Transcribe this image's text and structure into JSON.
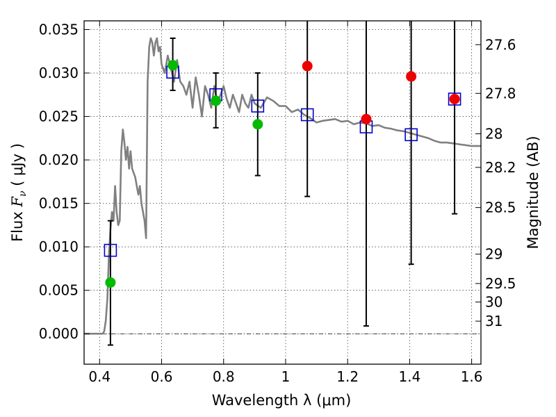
{
  "chart_data": {
    "type": "scatter",
    "xlabel": "Wavelength  λ (μm)",
    "ylabel_prefix": "Flux ",
    "ylabel_symbol": "F",
    "ylabel_subscript": "ν",
    "ylabel_suffix": " ( μJy )",
    "ylabel_right": "Magnitude (AB)",
    "xlim": [
      0.35,
      1.63
    ],
    "ylim": [
      -0.0035,
      0.036
    ],
    "grid": true,
    "x_ticks": [
      0.4,
      0.6,
      0.8,
      1.0,
      1.2,
      1.4,
      1.6
    ],
    "x_tick_labels": [
      "0.4",
      "0.6",
      "0.8",
      "1",
      "1.2",
      "1.4",
      "1.6"
    ],
    "y_ticks": [
      0.0,
      0.005,
      0.01,
      0.015,
      0.02,
      0.025,
      0.03,
      0.035
    ],
    "y_tick_labels": [
      "0.000",
      "0.005",
      "0.010",
      "0.015",
      "0.020",
      "0.025",
      "0.030",
      "0.035"
    ],
    "right_ticks": [
      {
        "label": "27.6",
        "flux": 0.03326
      },
      {
        "label": "27.8",
        "flux": 0.02766
      },
      {
        "label": "28",
        "flux": 0.02301
      },
      {
        "label": "28.2",
        "flux": 0.01914
      },
      {
        "label": "28.5",
        "flux": 0.01452
      },
      {
        "label": "29",
        "flux": 0.00916
      },
      {
        "label": "29.5",
        "flux": 0.00578
      },
      {
        "label": "30",
        "flux": 0.00365
      },
      {
        "label": "31",
        "flux": 0.00145
      }
    ],
    "colors": {
      "model": "#808080",
      "photometry_square": "#0000cc",
      "green_points": "#00bb00",
      "red_points": "#ee0000",
      "error_bars": "#000000",
      "grid": "#444444"
    },
    "series": [
      {
        "kind": "model_spectrum",
        "x": [
          0.35,
          0.41,
          0.415,
          0.42,
          0.425,
          0.43,
          0.435,
          0.44,
          0.445,
          0.45,
          0.455,
          0.46,
          0.465,
          0.47,
          0.475,
          0.48,
          0.485,
          0.49,
          0.495,
          0.5,
          0.505,
          0.51,
          0.515,
          0.52,
          0.525,
          0.53,
          0.535,
          0.54,
          0.545,
          0.55,
          0.555,
          0.56,
          0.565,
          0.57,
          0.575,
          0.58,
          0.585,
          0.59,
          0.595,
          0.6,
          0.61,
          0.62,
          0.63,
          0.64,
          0.65,
          0.66,
          0.67,
          0.68,
          0.69,
          0.7,
          0.71,
          0.72,
          0.73,
          0.74,
          0.75,
          0.76,
          0.77,
          0.78,
          0.79,
          0.8,
          0.81,
          0.82,
          0.83,
          0.84,
          0.85,
          0.86,
          0.87,
          0.88,
          0.89,
          0.9,
          0.92,
          0.94,
          0.96,
          0.98,
          1.0,
          1.02,
          1.04,
          1.06,
          1.08,
          1.1,
          1.12,
          1.14,
          1.16,
          1.18,
          1.2,
          1.22,
          1.24,
          1.26,
          1.28,
          1.3,
          1.32,
          1.34,
          1.36,
          1.38,
          1.4,
          1.42,
          1.44,
          1.46,
          1.48,
          1.5,
          1.52,
          1.54,
          1.56,
          1.58,
          1.6,
          1.63
        ],
        "y": [
          0.0,
          0.0,
          0.0003,
          0.0015,
          0.004,
          0.009,
          0.012,
          0.014,
          0.013,
          0.017,
          0.014,
          0.0125,
          0.013,
          0.021,
          0.0235,
          0.022,
          0.02,
          0.0215,
          0.019,
          0.021,
          0.019,
          0.0185,
          0.018,
          0.017,
          0.016,
          0.017,
          0.015,
          0.014,
          0.013,
          0.011,
          0.029,
          0.033,
          0.034,
          0.0335,
          0.032,
          0.0335,
          0.034,
          0.0325,
          0.033,
          0.031,
          0.03,
          0.032,
          0.0305,
          0.029,
          0.0315,
          0.029,
          0.0285,
          0.0275,
          0.029,
          0.026,
          0.0295,
          0.0275,
          0.025,
          0.0285,
          0.0275,
          0.026,
          0.0285,
          0.0265,
          0.0275,
          0.0285,
          0.027,
          0.026,
          0.0275,
          0.0265,
          0.0255,
          0.0275,
          0.0265,
          0.026,
          0.0275,
          0.0265,
          0.026,
          0.0272,
          0.0268,
          0.0262,
          0.0262,
          0.0255,
          0.0258,
          0.0252,
          0.0248,
          0.0243,
          0.0245,
          0.0246,
          0.0247,
          0.0244,
          0.0245,
          0.0241,
          0.0243,
          0.0242,
          0.0239,
          0.024,
          0.0237,
          0.0236,
          0.0234,
          0.0233,
          0.0231,
          0.0229,
          0.0227,
          0.0225,
          0.0222,
          0.022,
          0.022,
          0.0219,
          0.0218,
          0.0217,
          0.0216,
          0.0216
        ]
      },
      {
        "kind": "photometry_squares",
        "x": [
          0.435,
          0.636,
          0.775,
          0.91,
          1.07,
          1.26,
          1.405,
          1.545
        ],
        "y": [
          0.0096,
          0.0301,
          0.0275,
          0.0262,
          0.0252,
          0.0238,
          0.0229,
          0.027
        ]
      },
      {
        "kind": "green_points",
        "x": [
          0.435,
          0.636,
          0.775,
          0.91
        ],
        "y": [
          0.0059,
          0.0309,
          0.0268,
          0.0241
        ]
      },
      {
        "kind": "red_points",
        "x": [
          1.07,
          1.26,
          1.405,
          1.545
        ],
        "y": [
          0.0308,
          0.0247,
          0.0296,
          0.027
        ]
      },
      {
        "kind": "error_bars",
        "x": [
          0.435,
          0.636,
          0.775,
          0.91,
          1.07,
          1.26,
          1.405,
          1.545
        ],
        "y_low": [
          -0.0013,
          0.028,
          0.0237,
          0.0182,
          0.0158,
          0.0009,
          0.008,
          0.0138
        ],
        "y_high": [
          0.013,
          0.034,
          0.03,
          0.03,
          0.036,
          0.036,
          0.036,
          0.036
        ]
      }
    ]
  }
}
